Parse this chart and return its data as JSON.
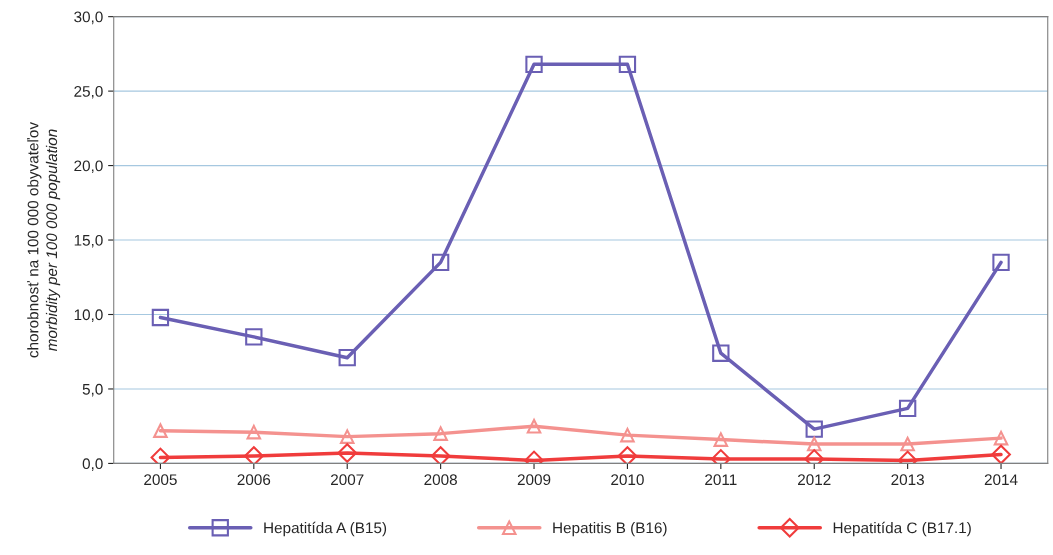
{
  "chart_data": {
    "type": "line",
    "categories": [
      "2005",
      "2006",
      "2007",
      "2008",
      "2009",
      "2010",
      "2011",
      "2012",
      "2013",
      "2014"
    ],
    "ylabel": "chorobnosť na 100 000 obyvateľov\nmorbidity per 100 000 population",
    "series": [
      {
        "name": "Hepatitída A (B15)",
        "color": "#6a5fb4",
        "marker": "square",
        "values": [
          9.8,
          8.5,
          7.1,
          13.5,
          26.8,
          26.8,
          7.4,
          2.3,
          3.7,
          13.5
        ]
      },
      {
        "name": "Hepatitis B (B16)",
        "color": "#f4928f",
        "marker": "triangle",
        "values": [
          2.2,
          2.1,
          1.8,
          2.0,
          2.5,
          1.9,
          1.6,
          1.3,
          1.3,
          1.7
        ]
      },
      {
        "name": "Hepatitída C (B17.1)",
        "color": "#f03c3c",
        "marker": "diamond",
        "values": [
          0.4,
          0.5,
          0.7,
          0.5,
          0.2,
          0.5,
          0.3,
          0.3,
          0.2,
          0.6
        ]
      }
    ],
    "ylim": [
      0,
      30
    ],
    "yticks": [
      {
        "value": 0,
        "label": "0,0"
      },
      {
        "value": 5,
        "label": "5,0"
      },
      {
        "value": 10,
        "label": "10,0"
      },
      {
        "value": 15,
        "label": "15,0"
      },
      {
        "value": 20,
        "label": "20,0"
      },
      {
        "value": 25,
        "label": "25,0"
      },
      {
        "value": 30,
        "label": "30,0"
      }
    ],
    "grid": "y",
    "legend": "bottom"
  }
}
